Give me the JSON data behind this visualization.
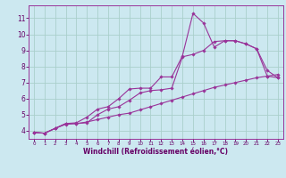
{
  "bg_color": "#cce8f0",
  "grid_color": "#aacfcc",
  "line_color": "#993399",
  "xlabel": "Windchill (Refroidissement éolien,°C)",
  "xlabel_color": "#660066",
  "tick_color": "#660066",
  "ylim": [
    3.5,
    11.8
  ],
  "xlim": [
    -0.5,
    23.5
  ],
  "yticks": [
    4,
    5,
    6,
    7,
    8,
    9,
    10,
    11
  ],
  "xticks": [
    0,
    1,
    2,
    3,
    4,
    5,
    6,
    7,
    8,
    9,
    10,
    11,
    12,
    13,
    14,
    15,
    16,
    17,
    18,
    19,
    20,
    21,
    22,
    23
  ],
  "line1_x": [
    0,
    1,
    2,
    3,
    4,
    5,
    6,
    7,
    8,
    9,
    10,
    11,
    12,
    13,
    14,
    15,
    16,
    17,
    18,
    19,
    20,
    21,
    22,
    23
  ],
  "line1_y": [
    3.9,
    3.85,
    4.15,
    4.4,
    4.45,
    4.55,
    4.7,
    4.85,
    5.0,
    5.1,
    5.3,
    5.5,
    5.7,
    5.9,
    6.1,
    6.3,
    6.5,
    6.7,
    6.85,
    7.0,
    7.15,
    7.3,
    7.4,
    7.5
  ],
  "line2_x": [
    0,
    1,
    2,
    3,
    4,
    5,
    6,
    7,
    8,
    9,
    10,
    11,
    12,
    13,
    14,
    15,
    16,
    17,
    18,
    19,
    20,
    21,
    22,
    23
  ],
  "line2_y": [
    3.9,
    3.85,
    4.15,
    4.45,
    4.45,
    4.5,
    5.0,
    5.35,
    5.5,
    5.9,
    6.35,
    6.5,
    6.55,
    6.65,
    8.6,
    8.75,
    9.0,
    9.55,
    9.6,
    9.6,
    9.4,
    9.1,
    7.4,
    7.3
  ],
  "line3_x": [
    0,
    1,
    2,
    3,
    4,
    5,
    6,
    7,
    8,
    9,
    10,
    11,
    12,
    13,
    14,
    15,
    16,
    17,
    18,
    19,
    20,
    21,
    22,
    23
  ],
  "line3_y": [
    3.9,
    3.85,
    4.15,
    4.45,
    4.5,
    4.85,
    5.35,
    5.5,
    6.0,
    6.6,
    6.65,
    6.65,
    7.35,
    7.35,
    8.65,
    11.3,
    10.7,
    9.2,
    9.6,
    9.6,
    9.4,
    9.1,
    7.75,
    7.3
  ],
  "marker": "D",
  "markersize": 1.8,
  "linewidth": 0.8,
  "tick_fontsize_x": 4.0,
  "tick_fontsize_y": 5.5
}
